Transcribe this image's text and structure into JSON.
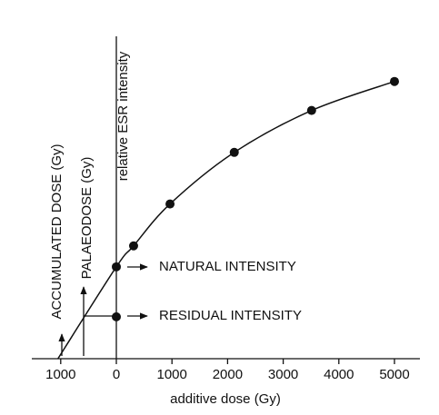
{
  "chart_data": {
    "type": "scatter",
    "xlabel": "additive dose (Gy)",
    "ylabel": "relative ESR intensity",
    "xlim": [
      -1200,
      5300
    ],
    "ylim": [
      0,
      100
    ],
    "xticks": [
      {
        "value": -1000,
        "label": "1000"
      },
      0,
      1000,
      2000,
      3000,
      4000,
      5000
    ],
    "color": "#111111",
    "points": {
      "x": [
        0,
        310,
        965,
        2120,
        3510,
        5000
      ],
      "y": [
        28.5,
        35,
        48,
        64,
        77,
        86
      ]
    },
    "residual": {
      "x": [
        0
      ],
      "y": [
        13
      ]
    },
    "curve": {
      "x": [
        -1050,
        0,
        310,
        965,
        2120,
        3510,
        5000
      ],
      "y": [
        0,
        28.5,
        35,
        48,
        64,
        77,
        86
      ]
    },
    "annotations": {
      "natural": "NATURAL INTENSITY",
      "residual": "RESIDUAL INTENSITY",
      "accumulated": "ACCUMULATED DOSE (Gy)",
      "palaeodose": "PALAEODOSE (Gy)"
    }
  }
}
